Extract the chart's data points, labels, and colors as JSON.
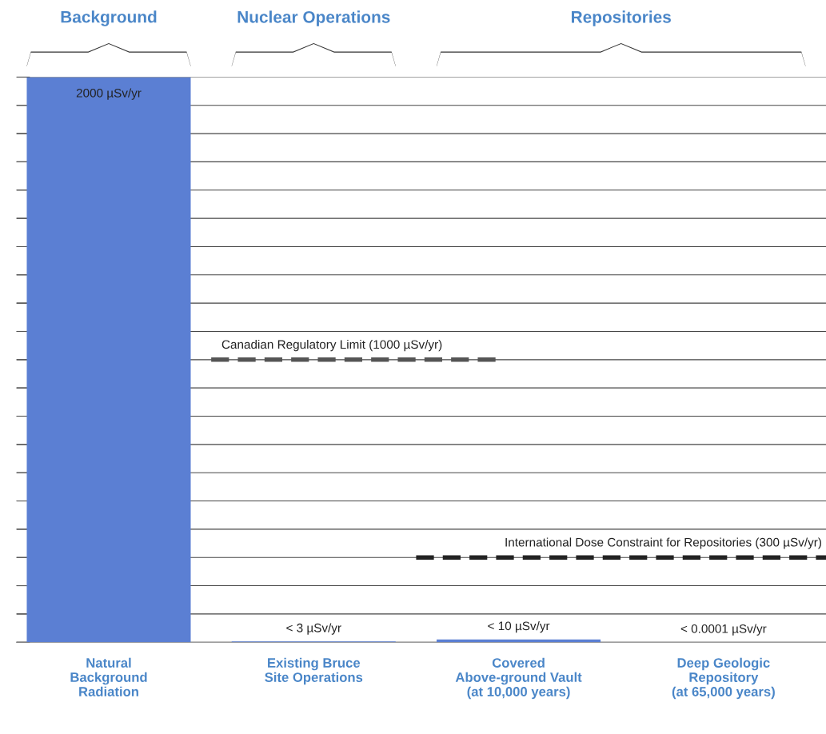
{
  "chart_data": {
    "type": "bar",
    "categories": [
      "Natural\nBackground\nRadiation",
      "Existing Bruce\nSite Operations",
      "Covered\nAbove-ground Vault\n(at 10,000 years)",
      "Deep Geologic\nRepository\n(at 65,000 years)"
    ],
    "values": [
      2000,
      3,
      10,
      0.0001
    ],
    "value_labels": [
      "2000 µSv/yr",
      "< 3 µSv/yr",
      "< 10 µSv/yr",
      "< 0.0001 µSv/yr"
    ],
    "color": "#5b7fd3",
    "ylim": [
      0,
      2000
    ],
    "yticks": [
      {
        "value": 0,
        "label": null
      },
      {
        "value": 100,
        "label": null
      },
      {
        "value": 200,
        "label": null
      },
      {
        "value": 300,
        "label": null
      },
      {
        "value": 400,
        "label": null
      },
      {
        "value": 500,
        "label": null
      },
      {
        "value": 600,
        "label": null
      },
      {
        "value": 700,
        "label": null
      },
      {
        "value": 800,
        "label": null
      },
      {
        "value": 900,
        "label": null
      },
      {
        "value": 1000,
        "label": null
      },
      {
        "value": 1100,
        "label": null
      },
      {
        "value": 1200,
        "label": null
      },
      {
        "value": 1300,
        "label": null
      },
      {
        "value": 1400,
        "label": null
      },
      {
        "value": 1500,
        "label": null
      },
      {
        "value": 1600,
        "label": null
      },
      {
        "value": 1700,
        "label": null
      },
      {
        "value": 1800,
        "label": null
      },
      {
        "value": 1900,
        "label": null
      },
      {
        "value": 2000,
        "label": null
      }
    ],
    "tick_labels": "x",
    "grid": "y",
    "ref_lines": [
      {
        "axis": "y",
        "value": 1000,
        "label": "Canadian Regulatory Limit (1000 µSv/yr)",
        "color": "#555555",
        "line_style": "dashed"
      },
      {
        "axis": "y",
        "value": 300,
        "label": "International Dose Constraint for Repositories (300 µSv/yr)",
        "color": "#222222",
        "line_style": "dashed"
      }
    ],
    "annotations": [
      "Background",
      "Nuclear Operations",
      "Repositories"
    ]
  }
}
